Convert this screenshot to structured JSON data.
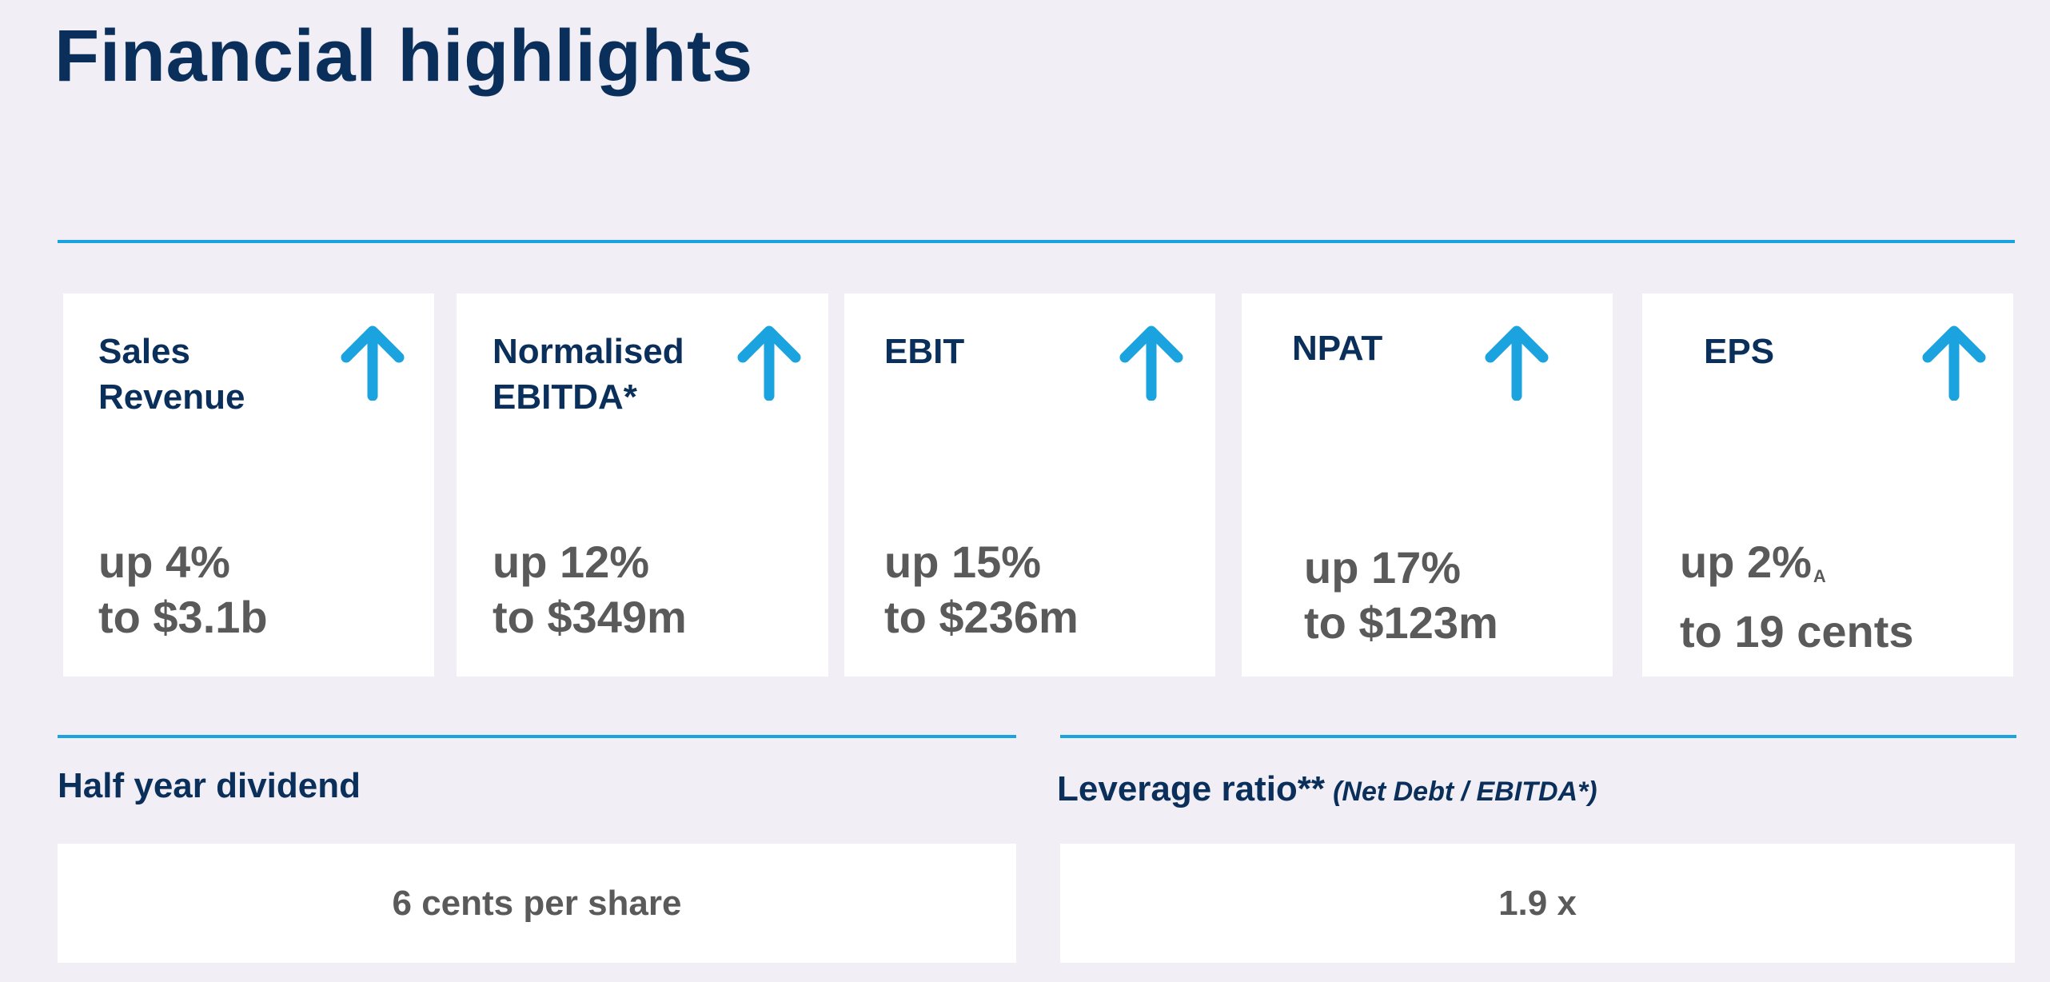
{
  "title": "Financial highlights",
  "cards": [
    {
      "label_lines": [
        "Sales",
        "Revenue"
      ],
      "trend_icon": "arrow-up-icon",
      "change": "up 4%",
      "result": "to $3.1b",
      "note": ""
    },
    {
      "label_lines": [
        "Normalised",
        "EBITDA*"
      ],
      "trend_icon": "arrow-up-icon",
      "change": "up 12%",
      "result": "to $349m",
      "note": ""
    },
    {
      "label_lines": [
        "EBIT",
        ""
      ],
      "trend_icon": "arrow-up-icon",
      "change": "up 15%",
      "result": "to $236m",
      "note": ""
    },
    {
      "label_lines": [
        "NPAT",
        ""
      ],
      "trend_icon": "arrow-up-icon",
      "change": "up 17%",
      "result": "to $123m",
      "note": ""
    },
    {
      "label_lines": [
        "EPS",
        ""
      ],
      "trend_icon": "arrow-up-icon",
      "change": "up 2%",
      "result": "to 19 cents",
      "note": "A"
    }
  ],
  "dividend": {
    "heading": "Half year dividend",
    "value": "6 cents per share"
  },
  "leverage": {
    "heading": "Leverage ratio**",
    "subheading": "(Net Debt / EBITDA*)",
    "value": "1.9 x"
  },
  "colors": {
    "background": "#f1eff5",
    "navy": "#0b2f5b",
    "accent_blue": "#1ba3e0",
    "value_grey": "#5a5a5a",
    "card": "#ffffff"
  }
}
